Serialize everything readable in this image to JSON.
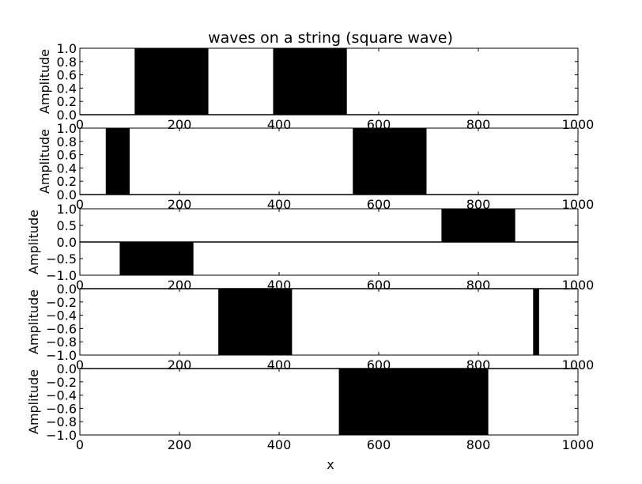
{
  "chart_data": {
    "type": "area",
    "title": "waves on a string (square wave)",
    "xlabel": "x",
    "xlim": [
      0,
      1000
    ],
    "xticks": [
      0,
      200,
      400,
      600,
      800,
      1000
    ],
    "panels": [
      {
        "ylabel": "Amplitude",
        "ylim": [
          0,
          1
        ],
        "yticks": [
          "0.0",
          "0.2",
          "0.4",
          "0.6",
          "0.8",
          "1.0"
        ],
        "intervals": [
          {
            "x0": 110,
            "x1": 258,
            "y": 1
          },
          {
            "x0": 388,
            "x1": 536,
            "y": 1
          }
        ]
      },
      {
        "ylabel": "Amplitude",
        "ylim": [
          0,
          1
        ],
        "yticks": [
          "0.0",
          "0.2",
          "0.4",
          "0.6",
          "0.8",
          "1.0"
        ],
        "intervals": [
          {
            "x0": 52,
            "x1": 100,
            "y": 1
          },
          {
            "x0": 548,
            "x1": 696,
            "y": 1
          }
        ]
      },
      {
        "ylabel": "Amplitude",
        "ylim": [
          -1,
          1
        ],
        "yticks": [
          "−1.0",
          "−0.5",
          "0.0",
          "0.5",
          "1.0"
        ],
        "intervals": [
          {
            "x0": 80,
            "x1": 228,
            "y": -1
          },
          {
            "x0": 726,
            "x1": 874,
            "y": 1
          }
        ]
      },
      {
        "ylabel": "Amplitude",
        "ylim": [
          -1,
          0
        ],
        "yticks": [
          "−1.0",
          "−0.8",
          "−0.6",
          "−0.4",
          "−0.2",
          "0.0"
        ],
        "intervals": [
          {
            "x0": 278,
            "x1": 426,
            "y": -1
          },
          {
            "x0": 910,
            "x1": 922,
            "y": -1
          }
        ]
      },
      {
        "ylabel": "Amplitude",
        "ylim": [
          -1,
          0
        ],
        "yticks": [
          "−1.0",
          "−0.8",
          "−0.6",
          "−0.4",
          "−0.2",
          "0.0"
        ],
        "intervals": [
          {
            "x0": 520,
            "x1": 820,
            "y": -1
          }
        ]
      }
    ]
  }
}
